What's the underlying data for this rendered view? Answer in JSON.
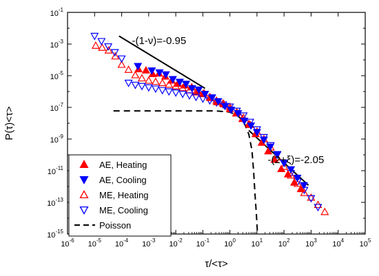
{
  "chart_data": {
    "type": "scatter",
    "xlabel": "τ/<τ>",
    "ylabel": "P(τ)<τ>",
    "x_scale": "log",
    "y_scale": "log",
    "xlim": [
      1e-06,
      100000.0
    ],
    "ylim": [
      1e-15,
      0.1
    ],
    "x_ticks": [
      {
        "base": "10",
        "exp": "-6"
      },
      {
        "base": "10",
        "exp": "-5"
      },
      {
        "base": "10",
        "exp": "-4"
      },
      {
        "base": "10",
        "exp": "-3"
      },
      {
        "base": "10",
        "exp": "-2"
      },
      {
        "base": "10",
        "exp": "-1"
      },
      {
        "base": "10",
        "exp": "0"
      },
      {
        "base": "10",
        "exp": "1"
      },
      {
        "base": "10",
        "exp": "2"
      },
      {
        "base": "10",
        "exp": "3"
      },
      {
        "base": "10",
        "exp": "4"
      },
      {
        "base": "10",
        "exp": "5"
      }
    ],
    "y_ticks": [
      {
        "base": "10",
        "exp": "-15"
      },
      {
        "base": "10",
        "exp": "-13"
      },
      {
        "base": "10",
        "exp": "-11"
      },
      {
        "base": "10",
        "exp": "-9"
      },
      {
        "base": "10",
        "exp": "-7"
      },
      {
        "base": "10",
        "exp": "-5"
      },
      {
        "base": "10",
        "exp": "-3"
      },
      {
        "base": "10",
        "exp": "-1"
      }
    ],
    "legend_position": "bottom-left",
    "series": [
      {
        "name": "AE, Heating",
        "marker": "triangle-up",
        "filled": true,
        "color": "#ff0000",
        "points": [
          [
            0.00042,
            2.6e-05
          ],
          [
            0.00079,
            2.2e-05
          ],
          [
            0.0014,
            1.3e-05
          ],
          [
            0.0024,
            1.4e-05
          ],
          [
            0.0041,
            9e-06
          ],
          [
            0.007,
            5e-06
          ],
          [
            0.012,
            3.2e-06
          ],
          [
            0.022,
            2.5e-06
          ],
          [
            0.039,
            1.9e-06
          ],
          [
            0.066,
            1.1e-06
          ],
          [
            0.11,
            8e-07
          ],
          [
            0.19,
            4e-07
          ],
          [
            0.33,
            2.2e-07
          ],
          [
            0.59,
            1.6e-07
          ],
          [
            1.0,
            8e-08
          ],
          [
            1.7,
            4.2e-08
          ],
          [
            2.9,
            1.9e-08
          ],
          [
            5.0,
            9e-09
          ],
          [
            8.9,
            2.1e-09
          ],
          [
            15,
            6e-10
          ],
          [
            26,
            1.7e-10
          ],
          [
            45,
            5e-11
          ],
          [
            79,
            1.3e-11
          ],
          [
            140,
            6e-12
          ],
          [
            240,
            1.8e-12
          ],
          [
            420,
            7e-13
          ]
        ]
      },
      {
        "name": "AE, Cooling",
        "marker": "triangle-down",
        "filled": true,
        "color": "#0000ff",
        "points": [
          [
            0.0004,
            4e-05
          ],
          [
            0.0013,
            2.1e-05
          ],
          [
            0.0025,
            1.6e-05
          ],
          [
            0.0043,
            1.2e-05
          ],
          [
            0.0078,
            6e-06
          ],
          [
            0.014,
            4e-06
          ],
          [
            0.024,
            3e-06
          ],
          [
            0.04,
            1.6e-06
          ],
          [
            0.071,
            1.3e-06
          ],
          [
            0.12,
            7e-07
          ],
          [
            0.22,
            4.2e-07
          ],
          [
            0.37,
            2.4e-07
          ],
          [
            0.66,
            1.2e-07
          ],
          [
            1.1,
            7e-08
          ],
          [
            2.0,
            4.2e-08
          ],
          [
            3.4,
            1.4e-08
          ],
          [
            6.0,
            7e-09
          ],
          [
            10,
            2.7e-09
          ],
          [
            18,
            9e-10
          ],
          [
            31,
            3.2e-10
          ],
          [
            56,
            1e-10
          ],
          [
            100,
            3.2e-11
          ],
          [
            180,
            1.2e-11
          ],
          [
            310,
            3.5e-12
          ],
          [
            540,
            1.2e-12
          ]
        ]
      },
      {
        "name": "ME, Heating",
        "marker": "triangle-up",
        "filled": false,
        "color": "#ff0000",
        "points": [
          [
            1.1e-05,
            0.0008
          ],
          [
            1.9e-05,
            0.0006
          ],
          [
            3.3e-05,
            0.0004
          ],
          [
            5.8e-05,
            0.00017
          ],
          [
            0.0001,
            5e-05
          ],
          [
            0.00018,
            2.4e-05
          ],
          [
            0.00032,
            1.1e-05
          ],
          [
            0.00056,
            7e-06
          ],
          [
            0.001,
            5e-06
          ],
          [
            0.0018,
            4.2e-06
          ],
          [
            0.0032,
            3.5e-06
          ],
          [
            0.0056,
            2.8e-06
          ],
          [
            0.01,
            2.2e-06
          ],
          [
            0.018,
            1.7e-06
          ],
          [
            0.032,
            1.2e-06
          ],
          [
            0.056,
            9e-07
          ],
          [
            0.1,
            7e-07
          ],
          [
            0.18,
            4.5e-07
          ],
          [
            0.32,
            2.7e-07
          ],
          [
            0.56,
            1.8e-07
          ],
          [
            1.0,
            1.1e-07
          ],
          [
            1.8,
            5e-08
          ],
          [
            3.2,
            2.2e-08
          ],
          [
            5.6,
            8e-09
          ],
          [
            10,
            3e-09
          ],
          [
            18,
            1e-09
          ],
          [
            32,
            3e-10
          ],
          [
            56,
            7e-11
          ],
          [
            100,
            1.8e-11
          ],
          [
            180,
            5e-12
          ],
          [
            320,
            1.5e-12
          ],
          [
            560,
            4e-13
          ],
          [
            1000,
            2e-13
          ],
          [
            1800,
            7e-14
          ],
          [
            3200,
            2.5e-14
          ]
        ]
      },
      {
        "name": "ME, Cooling",
        "marker": "triangle-down",
        "filled": false,
        "color": "#0000ff",
        "points": [
          [
            1e-05,
            0.0032
          ],
          [
            1.8e-05,
            0.0015
          ],
          [
            3.2e-05,
            0.0007
          ],
          [
            5.6e-05,
            0.0003
          ],
          [
            0.0001,
            0.00012
          ],
          [
            0.00018,
            3.5e-06
          ],
          [
            0.00032,
            2.6e-06
          ],
          [
            0.00056,
            2.2e-06
          ],
          [
            0.001,
            1.8e-06
          ],
          [
            0.0018,
            1.5e-06
          ],
          [
            0.0032,
            1.2e-06
          ],
          [
            0.0056,
            1e-06
          ],
          [
            0.01,
            8.5e-07
          ],
          [
            0.018,
            7e-07
          ],
          [
            0.032,
            5.6e-07
          ],
          [
            0.056,
            4.5e-07
          ],
          [
            0.1,
            3.5e-07
          ],
          [
            0.18,
            2.7e-07
          ],
          [
            0.32,
            2e-07
          ],
          [
            0.56,
            1.5e-07
          ],
          [
            1.0,
            1.1e-07
          ],
          [
            1.8,
            6e-08
          ],
          [
            3.2,
            3e-08
          ],
          [
            5.6,
            1.2e-08
          ],
          [
            10,
            4e-09
          ],
          [
            18,
            1.3e-09
          ],
          [
            32,
            4e-10
          ],
          [
            56,
            1.1e-10
          ],
          [
            100,
            3e-11
          ],
          [
            180,
            7e-12
          ],
          [
            320,
            2e-12
          ],
          [
            560,
            6e-13
          ],
          [
            1000,
            1.8e-13
          ],
          [
            1800,
            5e-14
          ]
        ]
      }
    ],
    "fit_lines": [
      {
        "points": [
          [
            8e-05,
            0.0032
          ],
          [
            0.12,
            1.6e-06
          ]
        ],
        "label": "-(1-ν)=-0.95",
        "label_anchor": [
          0.00024,
          0.001
        ]
      },
      {
        "points": [
          [
            5,
            3.5e-09
          ],
          [
            800,
            1.2e-12
          ]
        ],
        "label": "-(2+ξ)=-2.05",
        "label_anchor": [
          25,
          3e-11
        ]
      }
    ],
    "poisson": {
      "name": "Poisson",
      "points": [
        [
          5e-05,
          6e-08
        ],
        [
          0.3,
          6e-08
        ],
        [
          1,
          5e-08
        ],
        [
          2,
          3e-08
        ],
        [
          3.5,
          9e-09
        ],
        [
          5,
          2e-09
        ],
        [
          6.5,
          2e-10
        ],
        [
          7.5,
          1e-11
        ],
        [
          8.5,
          3e-13
        ],
        [
          9.5,
          2e-14
        ],
        [
          10.5,
          1e-15
        ]
      ]
    }
  }
}
